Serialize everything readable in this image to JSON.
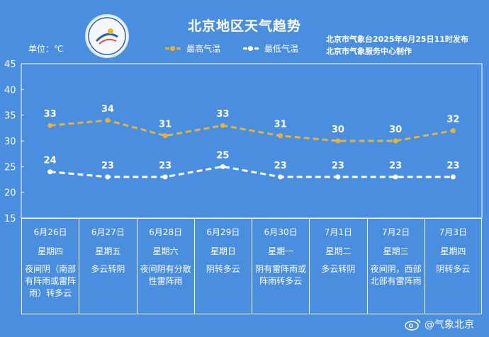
{
  "header": {
    "title": "北京地区天气趋势",
    "unit": "单位：℃",
    "legend_high": "最高气温",
    "legend_low": "最低气温",
    "issuer_line1": "北京市气象台2025年6月25日11时发布",
    "issuer_line2": "北京市气象服务中心制作"
  },
  "colors": {
    "background": "#4a8ee0",
    "high": "#e8b23a",
    "low": "#ffffff"
  },
  "chart_data": {
    "type": "line",
    "categories": [
      "6月26日",
      "6月27日",
      "6月28日",
      "6月29日",
      "6月30日",
      "7月1日",
      "7月2日",
      "7月3日"
    ],
    "series": [
      {
        "name": "最高气温",
        "values": [
          33,
          34,
          31,
          33,
          31,
          30,
          30,
          32
        ]
      },
      {
        "name": "最低气温",
        "values": [
          24,
          23,
          23,
          25,
          23,
          23,
          23,
          23
        ]
      }
    ],
    "ylim": [
      15,
      45
    ],
    "yticks": [
      15,
      20,
      25,
      30,
      35,
      40,
      45
    ],
    "ylabel": "单位：℃",
    "grid": false,
    "legend": "top"
  },
  "days": [
    {
      "date": "6月26日",
      "weekday": "星期四",
      "condition": "夜间阴（南部有阵雨或雷阵雨）转多云"
    },
    {
      "date": "6月27日",
      "weekday": "星期五",
      "condition": "多云转阴"
    },
    {
      "date": "6月28日",
      "weekday": "星期六",
      "condition": "夜间阴有分散性雷阵雨"
    },
    {
      "date": "6月29日",
      "weekday": "星期日",
      "condition": "阴转多云"
    },
    {
      "date": "6月30日",
      "weekday": "星期一",
      "condition": "阴有雷阵雨或阵雨转多云"
    },
    {
      "date": "7月1日",
      "weekday": "星期二",
      "condition": "多云转阴"
    },
    {
      "date": "7月2日",
      "weekday": "星期三",
      "condition": "夜间阴，西部北部有雷阵雨"
    },
    {
      "date": "7月3日",
      "weekday": "星期四",
      "condition": "阴转多云"
    }
  ],
  "watermark": "@气象北京"
}
